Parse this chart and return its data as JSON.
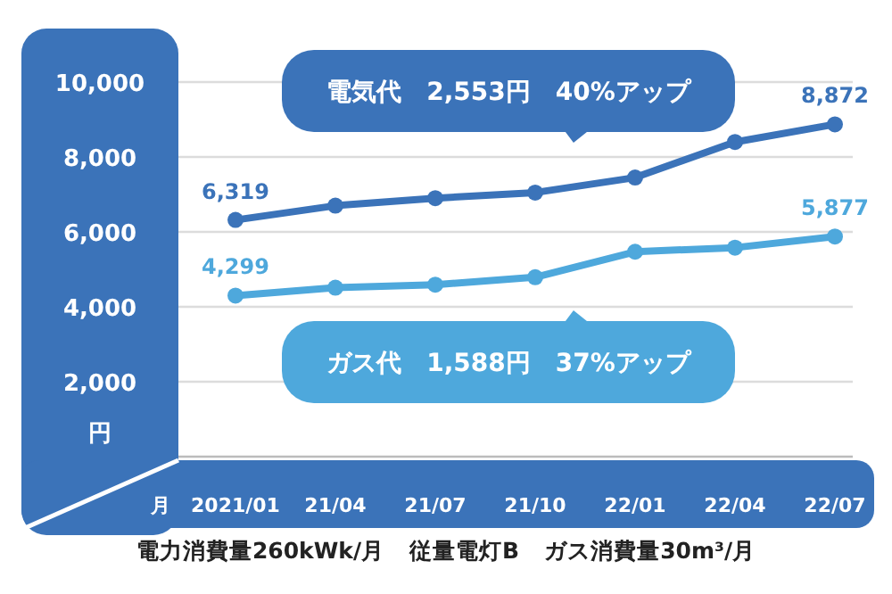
{
  "chart_data": {
    "type": "line",
    "categories": [
      "2021/01",
      "21/04",
      "21/07",
      "21/10",
      "22/01",
      "22/04",
      "22/07"
    ],
    "xlabel": "月",
    "ylabel": "円",
    "series": [
      {
        "name": null,
        "color": "#3b73b9",
        "values": [
          6319,
          6700,
          6900,
          7050,
          7450,
          8400,
          8872
        ],
        "value_labels": [
          "6,319",
          null,
          null,
          null,
          null,
          null,
          "8,872"
        ]
      },
      {
        "name": null,
        "color": "#4ea8dc",
        "values": [
          4299,
          4510,
          4590,
          4790,
          5470,
          5580,
          5877
        ],
        "value_labels": [
          "4,299",
          null,
          null,
          null,
          null,
          null,
          "5,877"
        ]
      }
    ],
    "ylim": [
      0,
      10000
    ],
    "yticks": [
      {
        "value": 2000,
        "label": "2,000"
      },
      {
        "value": 4000,
        "label": "4,000"
      },
      {
        "value": 6000,
        "label": "6,000"
      },
      {
        "value": 8000,
        "label": "8,000"
      },
      {
        "value": 10000,
        "label": "10,000"
      }
    ],
    "grid": "y",
    "marker": "circle",
    "line_style": "solid",
    "annotations": [
      "電気代　2,553円　40%アップ",
      "ガス代　1,588円　37%アップ",
      "電力消費量260kWk/月",
      "従量電灯B",
      "ガス消費量30m³/月"
    ]
  }
}
